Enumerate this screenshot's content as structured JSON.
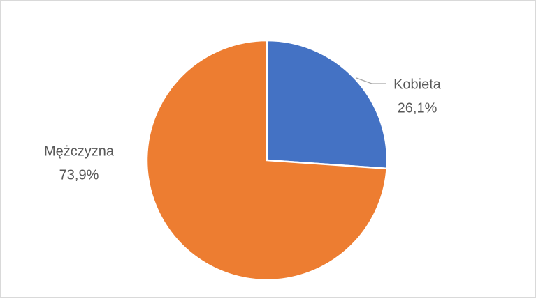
{
  "chart_data": {
    "type": "pie",
    "categories": [
      "Kobieta",
      "Mężczyzna"
    ],
    "values": [
      26.1,
      73.9
    ],
    "value_labels": [
      "26,1%",
      "73,9%"
    ],
    "colors": [
      "#4472c4",
      "#ed7d31"
    ]
  }
}
